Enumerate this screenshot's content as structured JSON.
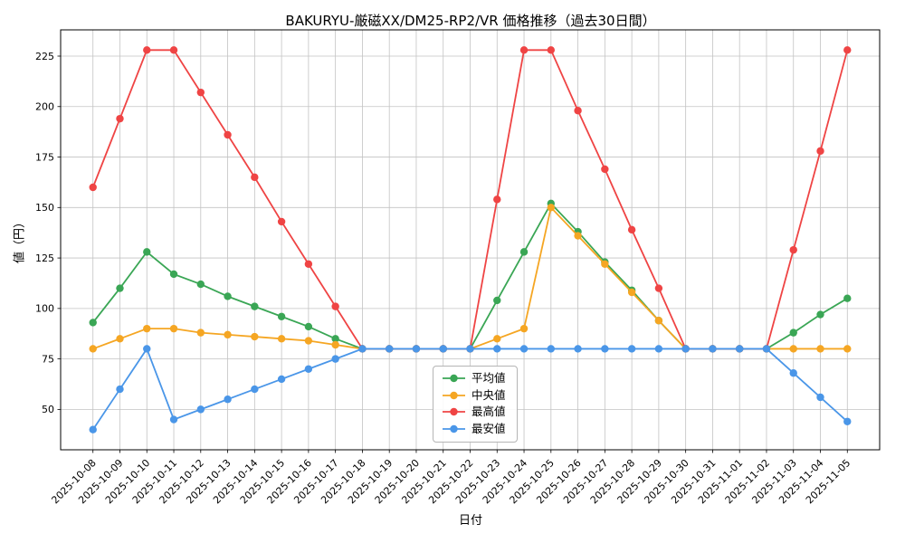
{
  "chart_data": {
    "type": "line",
    "title": "BAKURYU-厳磁XX/DM25-RP2/VR 価格推移（過去30日間）",
    "xlabel": "日付",
    "ylabel": "値（円）",
    "grid": true,
    "legend_position": "lower center inside plot",
    "ylim": [
      30,
      238
    ],
    "yticks": [
      50,
      75,
      100,
      125,
      150,
      175,
      200,
      225
    ],
    "x": [
      "2025-10-08",
      "2025-10-09",
      "2025-10-10",
      "2025-10-11",
      "2025-10-12",
      "2025-10-13",
      "2025-10-14",
      "2025-10-15",
      "2025-10-16",
      "2025-10-17",
      "2025-10-18",
      "2025-10-19",
      "2025-10-20",
      "2025-10-21",
      "2025-10-22",
      "2025-10-23",
      "2025-10-24",
      "2025-10-25",
      "2025-10-26",
      "2025-10-27",
      "2025-10-28",
      "2025-10-29",
      "2025-10-30",
      "2025-10-31",
      "2025-11-01",
      "2025-11-02",
      "2025-11-03",
      "2025-11-04",
      "2025-11-05"
    ],
    "series": [
      {
        "name": "平均値",
        "color": "#3aa655",
        "values": [
          93,
          110,
          128,
          117,
          112,
          106,
          101,
          96,
          91,
          85,
          80,
          80,
          80,
          80,
          80,
          104,
          128,
          152,
          138,
          123,
          109,
          94,
          80,
          80,
          80,
          80,
          88,
          97,
          105
        ]
      },
      {
        "name": "中央値",
        "color": "#f5a623",
        "values": [
          80,
          85,
          90,
          90,
          88,
          87,
          86,
          85,
          84,
          82,
          80,
          80,
          80,
          80,
          80,
          85,
          90,
          150,
          136,
          122,
          108,
          94,
          80,
          80,
          80,
          80,
          80,
          80,
          80
        ]
      },
      {
        "name": "最高値",
        "color": "#ef4444",
        "values": [
          160,
          194,
          228,
          228,
          207,
          186,
          165,
          143,
          122,
          101,
          80,
          80,
          80,
          80,
          80,
          154,
          228,
          228,
          198,
          169,
          139,
          110,
          80,
          80,
          80,
          80,
          129,
          178,
          228
        ]
      },
      {
        "name": "最安値",
        "color": "#4a96e8",
        "values": [
          40,
          60,
          80,
          45,
          50,
          55,
          60,
          65,
          70,
          75,
          80,
          80,
          80,
          80,
          80,
          80,
          80,
          80,
          80,
          80,
          80,
          80,
          80,
          80,
          80,
          80,
          68,
          56,
          44
        ]
      }
    ]
  }
}
